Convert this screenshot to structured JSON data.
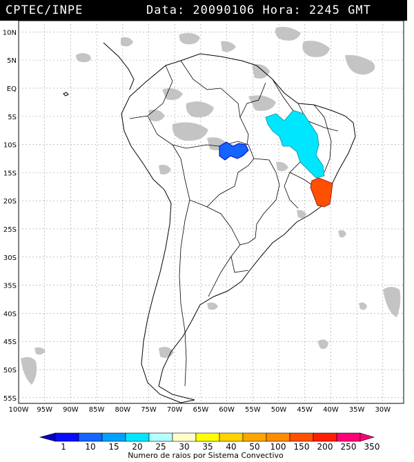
{
  "header": {
    "source": "CPTEC/INPE",
    "datetime": "Data: 20090106 Hora: 2245 GMT"
  },
  "map": {
    "lat_labels": [
      "10N",
      "5N",
      "EQ",
      "5S",
      "10S",
      "15S",
      "20S",
      "25S",
      "30S",
      "35S",
      "40S",
      "45S",
      "50S",
      "55S"
    ],
    "lon_labels": [
      "100W",
      "95W",
      "90W",
      "85W",
      "80W",
      "75W",
      "70W",
      "65W",
      "60W",
      "55W",
      "50W",
      "45W",
      "40W",
      "35W",
      "30W"
    ],
    "lat_range": [
      -56,
      12
    ],
    "lon_range": [
      -100,
      -26
    ],
    "grid": true
  },
  "lightning_clusters": [
    {
      "color": "#1464ff",
      "level": "10-15",
      "region": "north-central Brazil"
    },
    {
      "color": "#00ffff",
      "level": "25-30",
      "region": "northeast Brazil"
    },
    {
      "color": "#ff5000",
      "level": "150-200",
      "region": "eastern Brazil coast"
    }
  ],
  "colorbar": {
    "labels": [
      "1",
      "10",
      "15",
      "20",
      "25",
      "30",
      "35",
      "40",
      "50",
      "100",
      "150",
      "200",
      "250",
      "350"
    ],
    "colors": [
      "#0a0aff",
      "#1464ff",
      "#00a0ff",
      "#00e6ff",
      "#b4ffff",
      "#ffffcc",
      "#ffff00",
      "#ffd200",
      "#ffa500",
      "#ff8c00",
      "#ff5000",
      "#ff1e00",
      "#ff0078"
    ],
    "title": "Numero de raios por Sistema Convectivo"
  }
}
